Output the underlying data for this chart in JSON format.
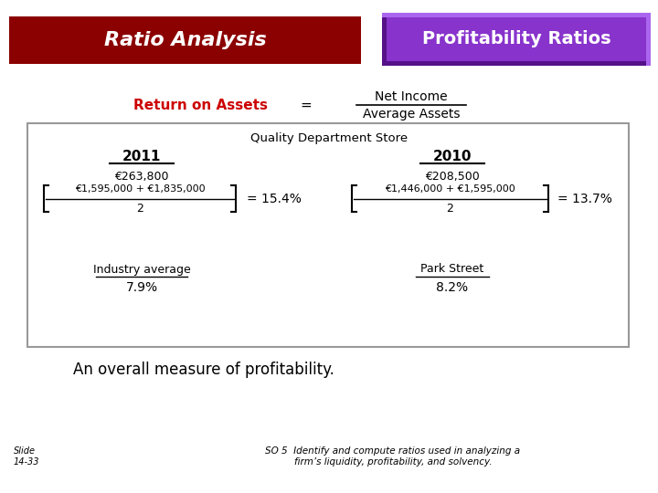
{
  "title_left": "Ratio Analysis",
  "title_right": "Profitability Ratios",
  "title_left_bg": "#8B0000",
  "title_right_bg": "#8833CC",
  "title_right_border_dark": "#551188",
  "title_right_border_light": "#AA66EE",
  "title_text_color": "#FFFFFF",
  "formula_label": "Return on Assets",
  "formula_label_color": "#CC0000",
  "formula_equals": "=",
  "formula_numerator": "Net Income",
  "formula_denominator": "Average Assets",
  "box_title": "Quality Department Store",
  "year_2011": "2011",
  "year_2010": "2010",
  "num_2011": "€263,800",
  "den_2011_line1": "€1,595,000 + €1,835,000",
  "den_2011_line2": "2",
  "result_2011": "= 15.4%",
  "num_2010": "€208,500",
  "den_2010_line1": "€1,446,000 + €1,595,000",
  "den_2010_line2": "2",
  "result_2010": "= 13.7%",
  "label_industry": "Industry average",
  "val_industry": "7.9%",
  "label_park": "Park Street",
  "val_park": "8.2%",
  "bottom_text": "An overall measure of profitability.",
  "slide_label": "Slide\n14-33",
  "so5_text": "SO 5  Identify and compute ratios used in analyzing a\nfirm’s liquidity, profitability, and solvency.",
  "bg_color": "#FFFFFF"
}
